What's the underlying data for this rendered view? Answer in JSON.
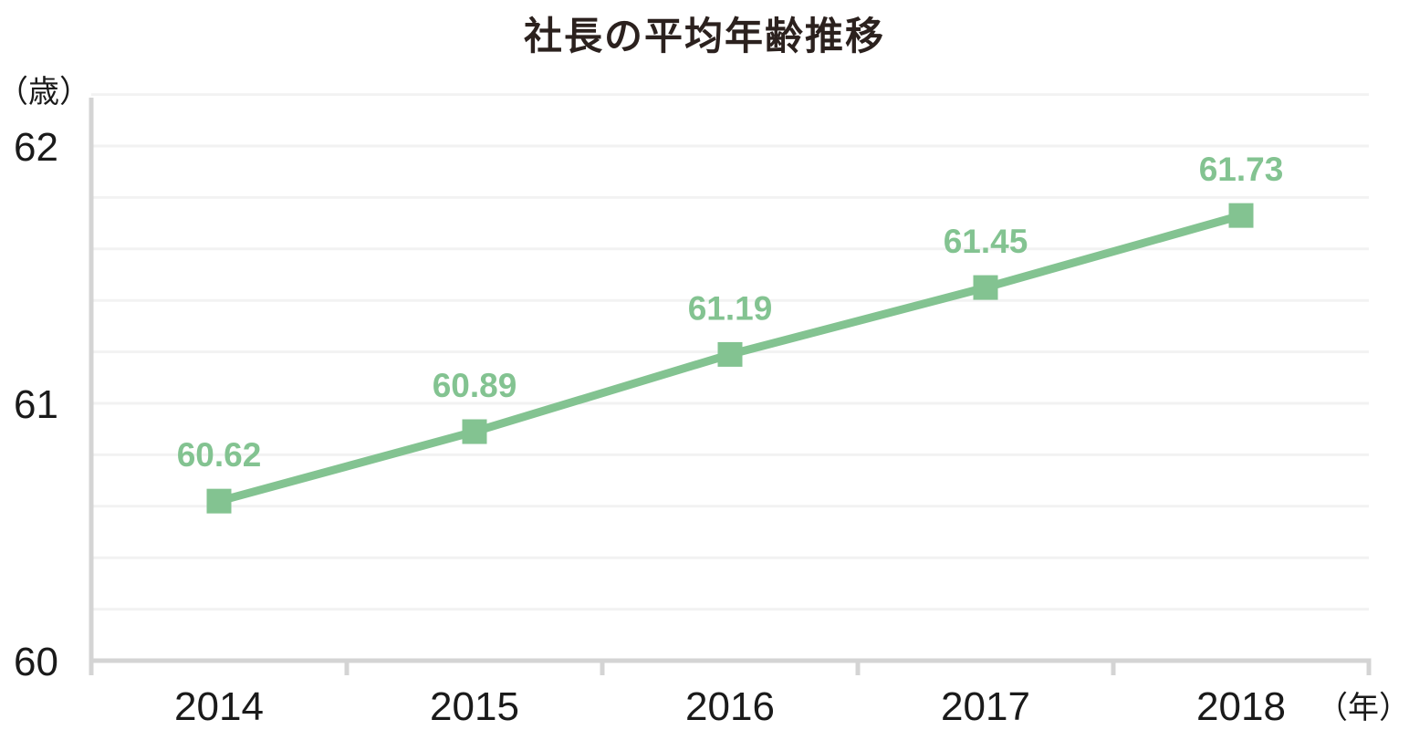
{
  "chart_data": {
    "type": "line",
    "title": "社長の平均年齢推移",
    "categories": [
      "2014",
      "2015",
      "2016",
      "2017",
      "2018"
    ],
    "values": [
      60.62,
      60.89,
      61.19,
      61.45,
      61.73
    ],
    "data_labels": [
      "60.62",
      "60.89",
      "61.19",
      "61.45",
      "61.73"
    ],
    "xlabel": "（年）",
    "ylabel": "（歳）",
    "ytick_values": [
      60,
      61,
      62
    ],
    "ytick_labels": [
      "60",
      "61",
      "62"
    ],
    "ylim": [
      60,
      62.2
    ],
    "minor_grid_step": 0.2,
    "grid": "horizontal-minor",
    "legend_position": "none",
    "marker_shape": "square",
    "colors": {
      "series": "#83c391",
      "data_label": "#83c391",
      "gridline": "#f2f2f2",
      "axis": "#d4d4d4",
      "tick_label": "#1a1a1a",
      "title": "#2b211e",
      "background": "#ffffff"
    }
  }
}
